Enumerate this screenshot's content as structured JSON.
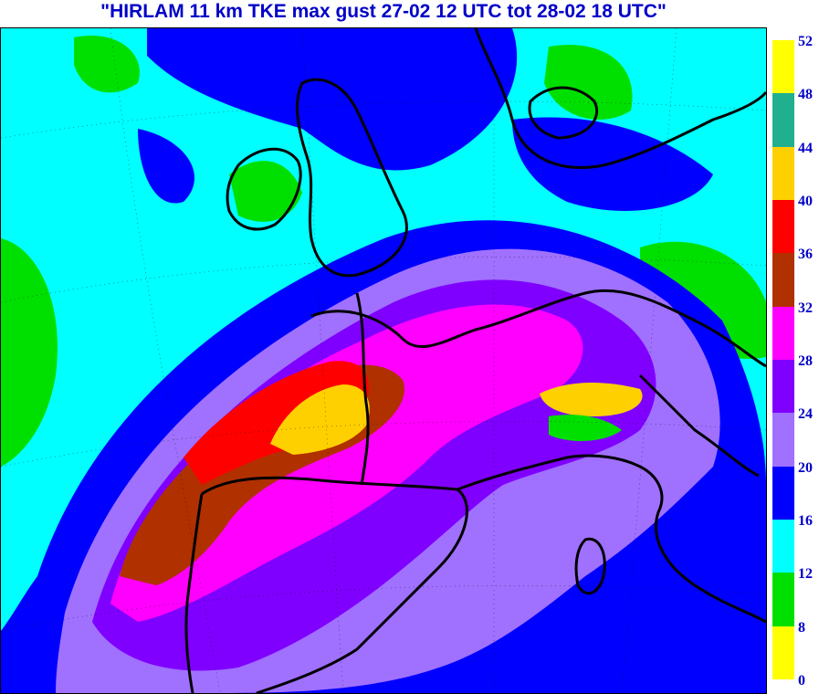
{
  "title": "\"HIRLAM 11 km TKE max gust 27-02 12 UTC tot 28-02 18 UTC\"",
  "legend": {
    "bins": [
      {
        "from": 0,
        "to": 8,
        "color": "#ffff00"
      },
      {
        "from": 8,
        "to": 12,
        "color": "#00e000"
      },
      {
        "from": 12,
        "to": 16,
        "color": "#00ffff"
      },
      {
        "from": 16,
        "to": 20,
        "color": "#0000ff"
      },
      {
        "from": 20,
        "to": 24,
        "color": "#a070ff"
      },
      {
        "from": 24,
        "to": 28,
        "color": "#8000ff"
      },
      {
        "from": 28,
        "to": 32,
        "color": "#ff00ff"
      },
      {
        "from": 32,
        "to": 36,
        "color": "#b03000"
      },
      {
        "from": 36,
        "to": 40,
        "color": "#ff0000"
      },
      {
        "from": 40,
        "to": 44,
        "color": "#ffd000"
      },
      {
        "from": 44,
        "to": 48,
        "color": "#20b090"
      },
      {
        "from": 48,
        "to": 52,
        "color": "#ffff00"
      }
    ],
    "labels": [
      "52",
      "48",
      "44",
      "40",
      "36",
      "32",
      "28",
      "24",
      "20",
      "16",
      "12",
      "8",
      "0"
    ]
  }
}
